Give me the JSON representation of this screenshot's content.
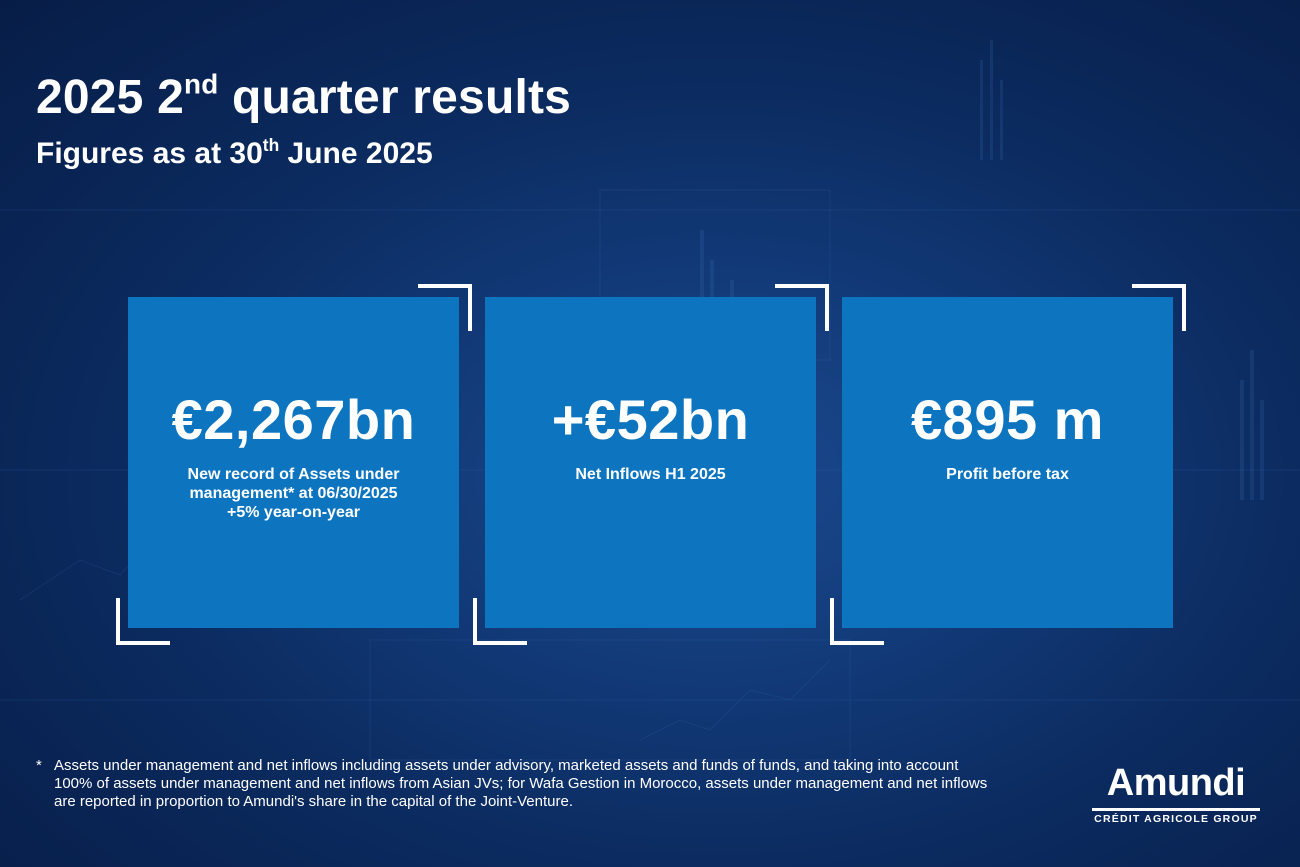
{
  "heading": {
    "title_pre": "2025 2",
    "title_sup": "nd",
    "title_post": " quarter results",
    "subtitle_pre": "Figures as at 30",
    "subtitle_sup": "th",
    "subtitle_post": " June 2025"
  },
  "cards": [
    {
      "value": "€2,267bn",
      "label_lines": [
        "New record of Assets under",
        "management* at 06/30/2025",
        "+5% year-on-year"
      ]
    },
    {
      "value": "+€52bn",
      "label_lines": [
        "Net Inflows H1 2025"
      ]
    },
    {
      "value": "€895 m",
      "label_lines": [
        "Profit before tax"
      ]
    }
  ],
  "footnote": {
    "marker": "*",
    "text": "Assets under management and net inflows including assets under advisory, marketed assets and funds of funds, and taking into account 100% of assets under management and net inflows from Asian JVs; for Wafa Gestion in Morocco, assets under management and net inflows are reported in proportion to Amundi's share in the capital of the Joint-Venture."
  },
  "logo": {
    "wordmark": "Amundi",
    "tagline": "CRÉDIT AGRICOLE GROUP"
  },
  "colors": {
    "background": "#0b2a5e",
    "card": "#0d75bf",
    "text": "#ffffff"
  }
}
